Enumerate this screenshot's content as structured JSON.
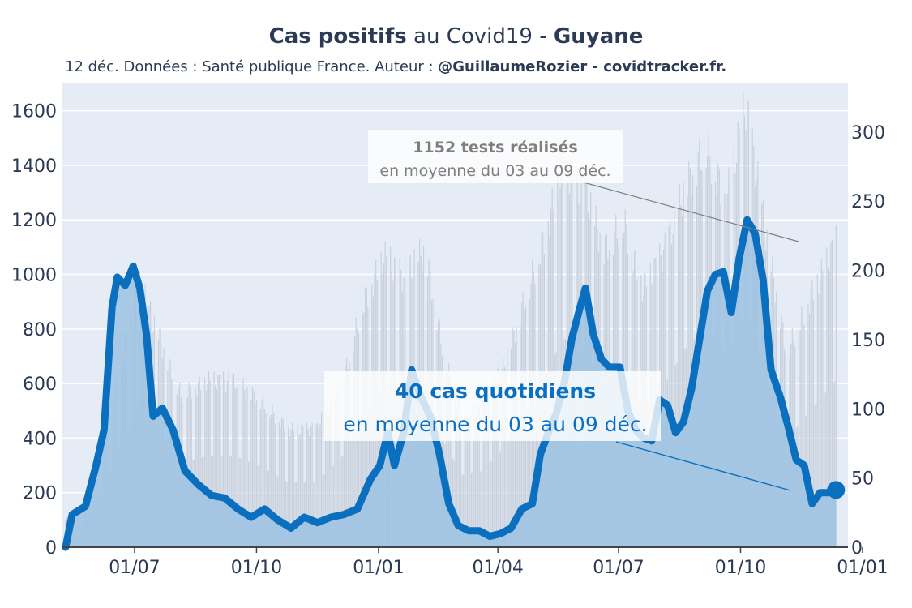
{
  "title": {
    "part1": "Cas positifs",
    "part2": " au Covid19 - ",
    "part3": "Guyane"
  },
  "subtitle": {
    "plain": "12 déc. Données : Santé publique France. Auteur : ",
    "bold": "@GuillaumeRozier - covidtracker.fr."
  },
  "annotations": {
    "tests_bold": "1152 tests réalisés",
    "tests_plain": "en moyenne du 03 au 09 déc.",
    "cases_bold": "40 cas quotidiens",
    "cases_plain": "en moyenne du 03 au 09 déc."
  },
  "colors": {
    "background": "#e5ecf6",
    "cases_line": "#0b6fbf",
    "cases_fill": "#9cc3e3",
    "tests_bars": "#c9d1dc",
    "annotation_tests": "#7f7f7f",
    "annotation_cases": "#0b6fbf"
  },
  "chart_data": {
    "type": "line",
    "x_ticks": [
      "01/07",
      "01/10",
      "01/01",
      "01/04",
      "01/07",
      "01/10",
      "01/01"
    ],
    "y_left_ticks": [
      "0",
      "200",
      "400",
      "600",
      "800",
      "1000",
      "1200",
      "1400",
      "1600"
    ],
    "y_right_ticks": [
      "0",
      "50",
      "100",
      "150",
      "200",
      "250",
      "300"
    ],
    "y_left_range": [
      0,
      1700
    ],
    "y_right_range": [
      0,
      335
    ],
    "x_range": [
      "2020-05-07",
      "2021-12-21"
    ],
    "series": [
      {
        "axis": "left",
        "points": [
          [
            "2020-05-10",
            0
          ],
          [
            "2020-05-15",
            120
          ],
          [
            "2020-05-25",
            150
          ],
          [
            "2020-06-02",
            300
          ],
          [
            "2020-06-08",
            430
          ],
          [
            "2020-06-14",
            880
          ],
          [
            "2020-06-18",
            990
          ],
          [
            "2020-06-24",
            960
          ],
          [
            "2020-06-30",
            1030
          ],
          [
            "2020-07-05",
            950
          ],
          [
            "2020-07-10",
            780
          ],
          [
            "2020-07-15",
            480
          ],
          [
            "2020-07-22",
            510
          ],
          [
            "2020-07-30",
            430
          ],
          [
            "2020-08-08",
            280
          ],
          [
            "2020-08-18",
            230
          ],
          [
            "2020-08-28",
            190
          ],
          [
            "2020-09-07",
            180
          ],
          [
            "2020-09-17",
            140
          ],
          [
            "2020-09-27",
            110
          ],
          [
            "2020-10-07",
            140
          ],
          [
            "2020-10-17",
            100
          ],
          [
            "2020-10-27",
            70
          ],
          [
            "2020-11-06",
            110
          ],
          [
            "2020-11-16",
            90
          ],
          [
            "2020-11-26",
            110
          ],
          [
            "2020-12-06",
            120
          ],
          [
            "2020-12-16",
            140
          ],
          [
            "2020-12-26",
            250
          ],
          [
            "2021-01-02",
            300
          ],
          [
            "2021-01-08",
            420
          ],
          [
            "2021-01-13",
            300
          ],
          [
            "2021-01-20",
            420
          ],
          [
            "2021-01-26",
            650
          ],
          [
            "2021-02-02",
            550
          ],
          [
            "2021-02-09",
            480
          ],
          [
            "2021-02-16",
            340
          ],
          [
            "2021-02-23",
            160
          ],
          [
            "2021-03-02",
            80
          ],
          [
            "2021-03-10",
            60
          ],
          [
            "2021-03-18",
            60
          ],
          [
            "2021-03-26",
            40
          ],
          [
            "2021-04-03",
            50
          ],
          [
            "2021-04-11",
            70
          ],
          [
            "2021-04-19",
            140
          ],
          [
            "2021-04-27",
            160
          ],
          [
            "2021-05-03",
            340
          ],
          [
            "2021-05-09",
            420
          ],
          [
            "2021-05-15",
            490
          ],
          [
            "2021-05-21",
            600
          ],
          [
            "2021-05-27",
            770
          ],
          [
            "2021-06-02",
            880
          ],
          [
            "2021-06-06",
            950
          ],
          [
            "2021-06-12",
            780
          ],
          [
            "2021-06-18",
            690
          ],
          [
            "2021-06-24",
            660
          ],
          [
            "2021-07-02",
            660
          ],
          [
            "2021-07-08",
            500
          ],
          [
            "2021-07-14",
            430
          ],
          [
            "2021-07-20",
            400
          ],
          [
            "2021-07-26",
            390
          ],
          [
            "2021-08-01",
            540
          ],
          [
            "2021-08-07",
            520
          ],
          [
            "2021-08-13",
            420
          ],
          [
            "2021-08-19",
            460
          ],
          [
            "2021-08-25",
            580
          ],
          [
            "2021-08-31",
            760
          ],
          [
            "2021-09-06",
            940
          ],
          [
            "2021-09-12",
            1000
          ],
          [
            "2021-09-18",
            1010
          ],
          [
            "2021-09-24",
            860
          ],
          [
            "2021-09-30",
            1060
          ],
          [
            "2021-10-06",
            1200
          ],
          [
            "2021-10-12",
            1150
          ],
          [
            "2021-10-18",
            980
          ],
          [
            "2021-10-24",
            650
          ],
          [
            "2021-10-31",
            550
          ],
          [
            "2021-11-06",
            440
          ],
          [
            "2021-11-12",
            320
          ],
          [
            "2021-11-18",
            300
          ],
          [
            "2021-11-24",
            160
          ],
          [
            "2021-11-30",
            200
          ],
          [
            "2021-12-06",
            200
          ],
          [
            "2021-12-12",
            210
          ]
        ]
      },
      {
        "axis": "right",
        "points": [
          [
            "2020-05-10",
            20
          ],
          [
            "2020-05-25",
            30
          ],
          [
            "2020-06-10",
            90
          ],
          [
            "2020-06-25",
            150
          ],
          [
            "2020-07-05",
            190
          ],
          [
            "2020-07-20",
            150
          ],
          [
            "2020-08-05",
            110
          ],
          [
            "2020-08-25",
            120
          ],
          [
            "2020-09-15",
            120
          ],
          [
            "2020-10-05",
            105
          ],
          [
            "2020-10-25",
            85
          ],
          [
            "2020-11-15",
            85
          ],
          [
            "2020-12-05",
            120
          ],
          [
            "2020-12-20",
            175
          ],
          [
            "2021-01-05",
            210
          ],
          [
            "2021-01-20",
            195
          ],
          [
            "2021-02-05",
            215
          ],
          [
            "2021-02-20",
            135
          ],
          [
            "2021-03-05",
            95
          ],
          [
            "2021-03-20",
            100
          ],
          [
            "2021-04-05",
            130
          ],
          [
            "2021-04-20",
            175
          ],
          [
            "2021-05-05",
            220
          ],
          [
            "2021-05-20",
            275
          ],
          [
            "2021-06-05",
            260
          ],
          [
            "2021-06-20",
            215
          ],
          [
            "2021-07-05",
            235
          ],
          [
            "2021-07-20",
            185
          ],
          [
            "2021-08-05",
            215
          ],
          [
            "2021-08-20",
            260
          ],
          [
            "2021-09-05",
            290
          ],
          [
            "2021-09-20",
            250
          ],
          [
            "2021-10-05",
            320
          ],
          [
            "2021-10-20",
            225
          ],
          [
            "2021-11-05",
            140
          ],
          [
            "2021-11-20",
            175
          ],
          [
            "2021-12-05",
            205
          ],
          [
            "2021-12-12",
            220
          ]
        ]
      }
    ]
  }
}
